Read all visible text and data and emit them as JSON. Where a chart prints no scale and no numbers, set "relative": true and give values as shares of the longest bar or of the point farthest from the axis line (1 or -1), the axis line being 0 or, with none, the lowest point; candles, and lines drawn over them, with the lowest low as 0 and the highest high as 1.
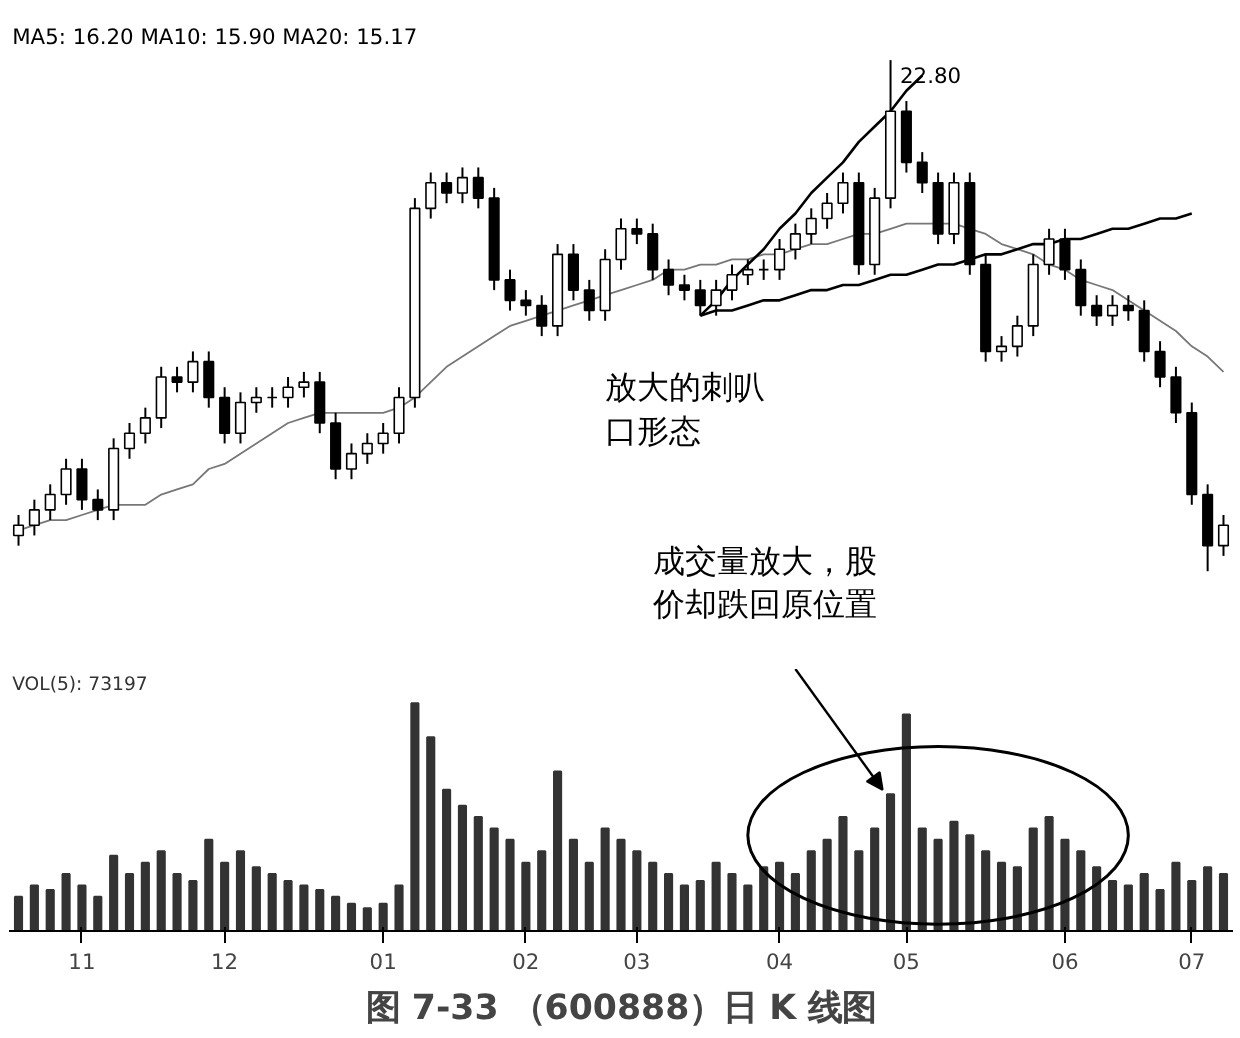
{
  "chart_data": [
    {
      "type": "candlestick",
      "relative": true,
      "grid": false,
      "categories": [
        null,
        null,
        null,
        null,
        null,
        null,
        null,
        null,
        null,
        null,
        null,
        null,
        null,
        null,
        null,
        null,
        null,
        null,
        null,
        null,
        null,
        null,
        null,
        null,
        null,
        null,
        null,
        null,
        null,
        null,
        null,
        null,
        null,
        null,
        null,
        null,
        null,
        null,
        null,
        null,
        null,
        null,
        null,
        null,
        null,
        null,
        null,
        null,
        null,
        null,
        null,
        null,
        null,
        null,
        null,
        null,
        null,
        null,
        null,
        null,
        null,
        null,
        null,
        null,
        null,
        null,
        null,
        null,
        null,
        null,
        null,
        null,
        null,
        null,
        null,
        null,
        null
      ],
      "ohlc": [
        [
          0.07,
          0.11,
          0.05,
          0.09
        ],
        [
          0.09,
          0.14,
          0.07,
          0.12
        ],
        [
          0.12,
          0.17,
          0.1,
          0.15
        ],
        [
          0.15,
          0.22,
          0.13,
          0.2
        ],
        [
          0.2,
          0.22,
          0.12,
          0.14
        ],
        [
          0.14,
          0.16,
          0.1,
          0.12
        ],
        [
          0.12,
          0.26,
          0.1,
          0.24
        ],
        [
          0.24,
          0.29,
          0.22,
          0.27
        ],
        [
          0.27,
          0.32,
          0.25,
          0.3
        ],
        [
          0.3,
          0.4,
          0.28,
          0.38
        ],
        [
          0.38,
          0.4,
          0.35,
          0.37
        ],
        [
          0.37,
          0.43,
          0.35,
          0.41
        ],
        [
          0.41,
          0.43,
          0.32,
          0.34
        ],
        [
          0.34,
          0.36,
          0.25,
          0.27
        ],
        [
          0.27,
          0.35,
          0.25,
          0.33
        ],
        [
          0.33,
          0.36,
          0.31,
          0.34
        ],
        [
          0.34,
          0.36,
          0.32,
          0.34
        ],
        [
          0.34,
          0.38,
          0.32,
          0.36
        ],
        [
          0.36,
          0.39,
          0.34,
          0.37
        ],
        [
          0.37,
          0.39,
          0.27,
          0.29
        ],
        [
          0.29,
          0.31,
          0.18,
          0.2
        ],
        [
          0.2,
          0.25,
          0.18,
          0.23
        ],
        [
          0.23,
          0.27,
          0.21,
          0.25
        ],
        [
          0.25,
          0.29,
          0.23,
          0.27
        ],
        [
          0.27,
          0.36,
          0.25,
          0.34
        ],
        [
          0.34,
          0.73,
          0.32,
          0.71
        ],
        [
          0.71,
          0.78,
          0.69,
          0.76
        ],
        [
          0.76,
          0.78,
          0.72,
          0.74
        ],
        [
          0.74,
          0.79,
          0.72,
          0.77
        ],
        [
          0.77,
          0.79,
          0.71,
          0.73
        ],
        [
          0.73,
          0.75,
          0.55,
          0.57
        ],
        [
          0.57,
          0.59,
          0.51,
          0.53
        ],
        [
          0.53,
          0.55,
          0.5,
          0.52
        ],
        [
          0.52,
          0.54,
          0.46,
          0.48
        ],
        [
          0.48,
          0.64,
          0.46,
          0.62
        ],
        [
          0.62,
          0.64,
          0.53,
          0.55
        ],
        [
          0.55,
          0.57,
          0.49,
          0.51
        ],
        [
          0.51,
          0.63,
          0.49,
          0.61
        ],
        [
          0.61,
          0.69,
          0.59,
          0.67
        ],
        [
          0.67,
          0.69,
          0.64,
          0.66
        ],
        [
          0.66,
          0.68,
          0.57,
          0.59
        ],
        [
          0.59,
          0.61,
          0.54,
          0.56
        ],
        [
          0.56,
          0.58,
          0.53,
          0.55
        ],
        [
          0.55,
          0.57,
          0.5,
          0.52
        ],
        [
          0.52,
          0.57,
          0.5,
          0.55
        ],
        [
          0.55,
          0.6,
          0.53,
          0.58
        ],
        [
          0.58,
          0.61,
          0.56,
          0.59
        ],
        [
          0.59,
          0.61,
          0.57,
          0.59
        ],
        [
          0.59,
          0.65,
          0.57,
          0.63
        ],
        [
          0.63,
          0.68,
          0.61,
          0.66
        ],
        [
          0.66,
          0.71,
          0.64,
          0.69
        ],
        [
          0.69,
          0.74,
          0.67,
          0.72
        ],
        [
          0.72,
          0.78,
          0.7,
          0.76
        ],
        [
          0.76,
          0.78,
          0.58,
          0.6
        ],
        [
          0.6,
          0.75,
          0.58,
          0.73
        ],
        [
          0.73,
          1.0,
          0.71,
          0.9
        ],
        [
          0.9,
          0.92,
          0.78,
          0.8
        ],
        [
          0.8,
          0.82,
          0.74,
          0.76
        ],
        [
          0.76,
          0.78,
          0.64,
          0.66
        ],
        [
          0.66,
          0.78,
          0.64,
          0.76
        ],
        [
          0.76,
          0.78,
          0.58,
          0.6
        ],
        [
          0.6,
          0.62,
          0.41,
          0.43
        ],
        [
          0.43,
          0.46,
          0.41,
          0.44
        ],
        [
          0.44,
          0.5,
          0.42,
          0.48
        ],
        [
          0.48,
          0.62,
          0.46,
          0.6
        ],
        [
          0.6,
          0.67,
          0.58,
          0.65
        ],
        [
          0.65,
          0.67,
          0.57,
          0.59
        ],
        [
          0.59,
          0.61,
          0.5,
          0.52
        ],
        [
          0.52,
          0.54,
          0.48,
          0.5
        ],
        [
          0.5,
          0.54,
          0.48,
          0.52
        ],
        [
          0.52,
          0.54,
          0.49,
          0.51
        ],
        [
          0.51,
          0.53,
          0.41,
          0.43
        ],
        [
          0.43,
          0.45,
          0.36,
          0.38
        ],
        [
          0.38,
          0.4,
          0.29,
          0.31
        ],
        [
          0.31,
          0.33,
          0.13,
          0.15
        ],
        [
          0.15,
          0.17,
          0.0,
          0.05
        ],
        [
          0.05,
          0.11,
          0.03,
          0.09
        ]
      ],
      "series": [
        {
          "type": "line",
          "color": "#777777",
          "values": [
            0.08,
            0.09,
            0.1,
            0.1,
            0.11,
            0.12,
            0.13,
            0.13,
            0.13,
            0.15,
            0.16,
            0.17,
            0.2,
            0.21,
            0.23,
            0.25,
            0.27,
            0.29,
            0.3,
            0.31,
            0.31,
            0.31,
            0.31,
            0.31,
            0.32,
            0.34,
            0.37,
            0.4,
            0.42,
            0.44,
            0.46,
            0.48,
            0.49,
            0.5,
            0.51,
            0.52,
            0.53,
            0.54,
            0.55,
            0.56,
            0.57,
            0.59,
            0.59,
            0.6,
            0.6,
            0.61,
            0.61,
            0.62,
            0.62,
            0.63,
            0.64,
            0.64,
            0.65,
            0.66,
            0.66,
            0.67,
            0.68,
            0.68,
            0.68,
            0.68,
            0.67,
            0.66,
            0.64,
            0.63,
            0.62,
            0.6,
            0.59,
            0.57,
            0.56,
            0.55,
            0.53,
            0.51,
            0.49,
            0.47,
            0.44,
            0.42,
            0.39
          ]
        },
        {
          "type": "line",
          "color": "#000000",
          "values": [
            null,
            null,
            null,
            null,
            null,
            null,
            null,
            null,
            null,
            null,
            null,
            null,
            null,
            null,
            null,
            null,
            null,
            null,
            null,
            null,
            null,
            null,
            null,
            null,
            null,
            null,
            null,
            null,
            null,
            null,
            null,
            null,
            null,
            null,
            null,
            null,
            null,
            null,
            null,
            null,
            null,
            null,
            null,
            0.5,
            0.53,
            0.57,
            0.6,
            0.63,
            0.67,
            0.7,
            0.74,
            0.77,
            0.8,
            0.84,
            0.87,
            0.9,
            0.94,
            0.97,
            null,
            null,
            null,
            null,
            null,
            null,
            null,
            null,
            null,
            null,
            null,
            null,
            null,
            null,
            null,
            null,
            null,
            null,
            null
          ]
        },
        {
          "type": "line",
          "color": "#000000",
          "values": [
            null,
            null,
            null,
            null,
            null,
            null,
            null,
            null,
            null,
            null,
            null,
            null,
            null,
            null,
            null,
            null,
            null,
            null,
            null,
            null,
            null,
            null,
            null,
            null,
            null,
            null,
            null,
            null,
            null,
            null,
            null,
            null,
            null,
            null,
            null,
            null,
            null,
            null,
            null,
            null,
            null,
            null,
            null,
            0.5,
            0.51,
            0.51,
            0.52,
            0.53,
            0.53,
            0.54,
            0.55,
            0.55,
            0.56,
            0.56,
            0.57,
            0.58,
            0.58,
            0.59,
            0.6,
            0.6,
            0.61,
            0.62,
            0.62,
            0.63,
            0.64,
            0.64,
            0.65,
            0.65,
            0.66,
            0.67,
            0.67,
            0.68,
            0.69,
            0.69,
            0.7,
            null,
            null
          ]
        }
      ],
      "annotations": [
        "MA5: 16.20 MA10: 15.90 MA20: 15.17",
        "22.80",
        "放大的刺叭口形态",
        "成交量放大，股价却跌回原位置"
      ]
    },
    {
      "type": "bar",
      "relative": true,
      "grid": false,
      "color": "#333333",
      "title": "图 7-33 （600888）日 K 线图",
      "categories": [
        null,
        null,
        null,
        null,
        "11",
        null,
        null,
        null,
        null,
        null,
        null,
        null,
        null,
        "12",
        null,
        null,
        null,
        null,
        null,
        null,
        null,
        null,
        null,
        "01",
        null,
        null,
        null,
        null,
        null,
        null,
        null,
        null,
        "02",
        null,
        null,
        null,
        null,
        null,
        null,
        "03",
        null,
        null,
        null,
        null,
        null,
        null,
        null,
        null,
        "04",
        null,
        null,
        null,
        null,
        null,
        null,
        null,
        "05",
        null,
        null,
        null,
        null,
        null,
        null,
        null,
        null,
        null,
        "06",
        null,
        null,
        null,
        null,
        null,
        null,
        null,
        "07",
        null,
        null
      ],
      "values": [
        0.15,
        0.2,
        0.18,
        0.25,
        0.2,
        0.15,
        0.33,
        0.25,
        0.3,
        0.35,
        0.25,
        0.22,
        0.4,
        0.3,
        0.35,
        0.28,
        0.25,
        0.22,
        0.2,
        0.18,
        0.15,
        0.12,
        0.1,
        0.12,
        0.2,
        1.0,
        0.85,
        0.62,
        0.55,
        0.5,
        0.45,
        0.4,
        0.3,
        0.35,
        0.7,
        0.4,
        0.3,
        0.45,
        0.4,
        0.35,
        0.3,
        0.25,
        0.2,
        0.22,
        0.3,
        0.25,
        0.2,
        0.28,
        0.3,
        0.25,
        0.35,
        0.4,
        0.5,
        0.35,
        0.45,
        0.6,
        0.95,
        0.45,
        0.4,
        0.48,
        0.42,
        0.35,
        0.3,
        0.28,
        0.45,
        0.5,
        0.4,
        0.35,
        0.28,
        0.22,
        0.2,
        0.25,
        0.18,
        0.3,
        0.22,
        0.28,
        0.25
      ],
      "annotations": [
        "VOL(5): 73197"
      ]
    }
  ]
}
